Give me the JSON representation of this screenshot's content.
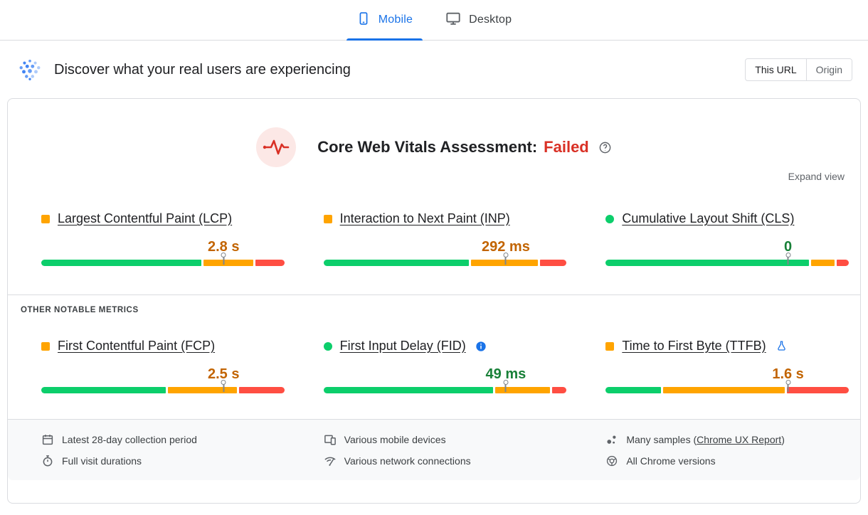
{
  "device_tabs": [
    {
      "label": "Mobile",
      "icon": "mobile-phone-icon",
      "active": true
    },
    {
      "label": "Desktop",
      "icon": "desktop-monitor-icon",
      "active": false
    }
  ],
  "field_section": {
    "icon": "real-user-data-icon",
    "title": "Discover what your real users are experiencing",
    "scope_toggle": {
      "options": [
        {
          "label": "This URL",
          "active": true
        },
        {
          "label": "Origin",
          "active": false
        }
      ]
    }
  },
  "assessment": {
    "icon": "pulse-icon",
    "title": "Core Web Vitals Assessment:",
    "status": "Failed",
    "status_color": "#d93025",
    "help_icon": "help-icon",
    "expand_label": "Expand view"
  },
  "gauge_colors": {
    "good": "#0cce6b",
    "needs_improvement": "#ffa400",
    "poor": "#ff4e42"
  },
  "core_metrics": [
    {
      "name": "Largest Contentful Paint (LCP)",
      "value": "2.8 s",
      "rating": "needs-improvement",
      "marker_shape": "square",
      "marker_color": "#ffa400",
      "value_color": "#c26401",
      "distribution": {
        "good": 67,
        "needs_improvement": 21,
        "poor": 12
      },
      "p75_percent": 75,
      "badge": null
    },
    {
      "name": "Interaction to Next Paint (INP)",
      "value": "292 ms",
      "rating": "needs-improvement",
      "marker_shape": "square",
      "marker_color": "#ffa400",
      "value_color": "#c26401",
      "distribution": {
        "good": 61,
        "needs_improvement": 28,
        "poor": 11
      },
      "p75_percent": 75,
      "badge": null
    },
    {
      "name": "Cumulative Layout Shift (CLS)",
      "value": "0",
      "rating": "good",
      "marker_shape": "circle",
      "marker_color": "#0cce6b",
      "value_color": "#188038",
      "distribution": {
        "good": 85,
        "needs_improvement": 10,
        "poor": 5
      },
      "p75_percent": 75,
      "badge": null
    }
  ],
  "other_metrics_label": "OTHER NOTABLE METRICS",
  "other_metrics": [
    {
      "name": "First Contentful Paint (FCP)",
      "value": "2.5 s",
      "rating": "needs-improvement",
      "marker_shape": "square",
      "marker_color": "#ffa400",
      "value_color": "#c26401",
      "distribution": {
        "good": 52,
        "needs_improvement": 29,
        "poor": 19
      },
      "p75_percent": 75,
      "badge": null
    },
    {
      "name": "First Input Delay (FID)",
      "value": "49 ms",
      "rating": "good",
      "marker_shape": "circle",
      "marker_color": "#0cce6b",
      "value_color": "#188038",
      "distribution": {
        "good": 71,
        "needs_improvement": 23,
        "poor": 6
      },
      "p75_percent": 75,
      "badge": "info"
    },
    {
      "name": "Time to First Byte (TTFB)",
      "value": "1.6 s",
      "rating": "needs-improvement",
      "marker_shape": "square",
      "marker_color": "#ffa400",
      "value_color": "#c26401",
      "distribution": {
        "good": 23,
        "needs_improvement": 51,
        "poor": 26
      },
      "p75_percent": 75,
      "badge": "experimental"
    }
  ],
  "footer": {
    "columns": [
      {
        "items": [
          {
            "icon": "calendar-icon",
            "text": "Latest 28-day collection period"
          },
          {
            "icon": "stopwatch-icon",
            "text": "Full visit durations"
          }
        ]
      },
      {
        "items": [
          {
            "icon": "mobile-devices-icon",
            "text": "Various mobile devices"
          },
          {
            "icon": "network-connections-icon",
            "text": "Various network connections"
          }
        ]
      },
      {
        "items": [
          {
            "icon": "samples-icon",
            "text_before": "Many samples (",
            "link_label": "Chrome UX Report",
            "text_after": ")"
          },
          {
            "icon": "chrome-icon",
            "text": "All Chrome versions"
          }
        ]
      }
    ]
  }
}
